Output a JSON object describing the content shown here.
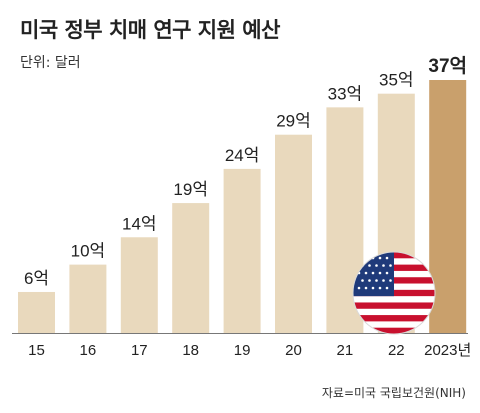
{
  "title": "미국 정부 치매 연구 지원 예산",
  "unit_label": "단위: 달러",
  "source": "자료=미국 국립보건원(NIH)",
  "colors": {
    "bar": "#e9d9bd",
    "highlight_bar": "#c9a06c",
    "axis": "#777777"
  },
  "flag_icon": "us-flag-icon",
  "chart_data": {
    "type": "bar",
    "categories": [
      "15",
      "16",
      "17",
      "18",
      "19",
      "20",
      "21",
      "22",
      "2023년"
    ],
    "values": [
      6,
      10,
      14,
      19,
      24,
      29,
      33,
      35,
      37
    ],
    "data_labels": [
      "6억",
      "10억",
      "14억",
      "19억",
      "24억",
      "29억",
      "33억",
      "35억",
      "37억"
    ],
    "ylim": [
      0,
      40
    ],
    "highlight_index": 8,
    "grid": false,
    "legend": "none"
  }
}
